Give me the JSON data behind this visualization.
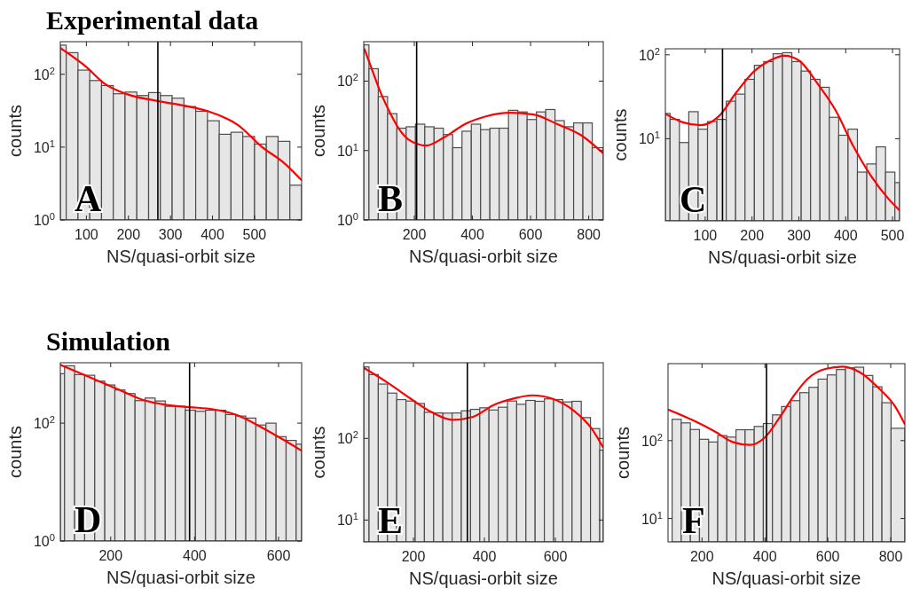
{
  "chart_data": [
    {
      "type": "histogram",
      "title": "Experimental data",
      "xlabel": "NS/quasi-orbit size",
      "ylabel": "counts",
      "annotations": [
        "A"
      ],
      "log": "y",
      "xlim": [
        38,
        612
      ],
      "ylim": [
        1,
        280
      ],
      "xticks": [
        100,
        200,
        300,
        400,
        500
      ],
      "yticks": [
        {
          "value": 1,
          "label": "10$^{0}$"
        },
        {
          "value": 10,
          "label": "10$^{1}$"
        },
        {
          "value": 100,
          "label": "10$^{2}$"
        }
      ],
      "ref_lines": [
        {
          "axis": "x",
          "value": 270,
          "color": "#000000"
        }
      ],
      "series": [
        {
          "type": "histogram",
          "color": "#e6e6e6",
          "bins": [
            38,
            52,
            80,
            108,
            136,
            164,
            192,
            220,
            248,
            276,
            304,
            332,
            360,
            388,
            416,
            444,
            472,
            500,
            528,
            556,
            584,
            612
          ],
          "values": [
            251,
            198,
            114,
            82,
            70,
            54,
            57,
            51,
            56,
            51,
            47,
            36,
            31,
            23,
            15,
            16,
            14,
            11,
            14,
            12,
            3
          ]
        },
        {
          "type": "line",
          "color": "#ff0000",
          "x": [
            38,
            99,
            141,
            198,
            269,
            333,
            390,
            461,
            518,
            568,
            612
          ],
          "values": [
            229,
            127,
            76,
            53,
            43,
            37,
            31,
            20,
            10,
            6.2,
            3.5
          ]
        }
      ]
    },
    {
      "type": "histogram",
      "xlabel": "NS/quasi-orbit size",
      "ylabel": "counts",
      "annotations": [
        "B"
      ],
      "log": "y",
      "xlim": [
        26,
        850
      ],
      "ylim": [
        1,
        370
      ],
      "xticks": [
        200,
        400,
        600,
        800
      ],
      "yticks": [
        {
          "value": 1,
          "label": "10$^{0}$"
        },
        {
          "value": 10,
          "label": "10$^{1}$"
        },
        {
          "value": 100,
          "label": "10$^{2}$"
        }
      ],
      "ref_lines": [
        {
          "axis": "x",
          "value": 208,
          "color": "#000000"
        }
      ],
      "series": [
        {
          "type": "histogram",
          "color": "#e6e6e6",
          "bins": [
            26,
            44,
            76,
            108,
            140,
            172,
            204,
            236,
            268,
            300,
            332,
            364,
            396,
            428,
            460,
            492,
            524,
            556,
            588,
            620,
            652,
            684,
            716,
            748,
            780,
            812,
            850
          ],
          "values": [
            333,
            151,
            60,
            34,
            21,
            22,
            24,
            22,
            21,
            17,
            11,
            19,
            24,
            20,
            21,
            21,
            38,
            36,
            28,
            36,
            39,
            27,
            22,
            25,
            25,
            11
          ]
        },
        {
          "type": "line",
          "color": "#ff0000",
          "x": [
            28,
            56,
            87,
            118,
            149,
            179,
            241,
            303,
            374,
            446,
            528,
            610,
            692,
            774,
            850
          ],
          "values": [
            294,
            141,
            64,
            34,
            20,
            14.5,
            11.8,
            15.5,
            24,
            31,
            35,
            33,
            24,
            16.6,
            9.1
          ]
        }
      ]
    },
    {
      "type": "histogram",
      "xlabel": "NS/quasi-orbit size",
      "ylabel": "counts",
      "annotations": [
        "C"
      ],
      "log": "y",
      "xlim": [
        15,
        515
      ],
      "ylim": [
        1.05,
        118
      ],
      "xticks": [
        100,
        200,
        300,
        400,
        500
      ],
      "yticks": [
        {
          "value": 10,
          "label": "10$^{1}$"
        },
        {
          "value": 100,
          "label": "10$^{2}$"
        }
      ],
      "ref_lines": [
        {
          "axis": "x",
          "value": 137,
          "color": "#000000"
        }
      ],
      "series": [
        {
          "type": "histogram",
          "color": "#e6e6e6",
          "bins": [
            15,
            25,
            45,
            65,
            85,
            105,
            125,
            145,
            165,
            185,
            205,
            225,
            245,
            265,
            285,
            305,
            325,
            345,
            365,
            385,
            405,
            425,
            445,
            465,
            485,
            505,
            515
          ],
          "values": [
            20,
            17,
            9,
            21,
            13,
            16,
            17,
            28,
            34,
            51,
            75,
            83,
            103,
            106,
            83,
            64,
            51,
            41,
            18,
            11,
            13,
            4,
            5,
            8,
            4,
            3
          ]
        },
        {
          "type": "line",
          "color": "#ff0000",
          "x": [
            15,
            52,
            90,
            129,
            167,
            205,
            237,
            269,
            301,
            339,
            378,
            416,
            454,
            492,
            515
          ],
          "values": [
            19.8,
            15.7,
            14.5,
            18.5,
            36,
            64,
            85,
            97.5,
            85,
            46,
            22,
            8.2,
            3.6,
            1.9,
            1.4
          ]
        }
      ]
    },
    {
      "type": "histogram",
      "title": "Simulation",
      "xlabel": "NS/quasi-orbit size",
      "ylabel": "counts",
      "annotations": [
        "D"
      ],
      "log": "y",
      "xlim": [
        80,
        655
      ],
      "ylim": [
        1,
        1060
      ],
      "xticks": [
        200,
        400,
        600
      ],
      "yticks": [
        {
          "value": 1,
          "label": "10$^{0}$"
        },
        {
          "value": 100,
          "label": "10$^{2}$"
        }
      ],
      "ref_lines": [
        {
          "axis": "x",
          "value": 388,
          "color": "#000000"
        }
      ],
      "series": [
        {
          "type": "histogram",
          "color": "#e6e6e6",
          "bins": [
            80,
            90,
            114,
            138,
            162,
            186,
            210,
            234,
            258,
            282,
            306,
            330,
            354,
            378,
            402,
            426,
            450,
            474,
            498,
            522,
            546,
            570,
            594,
            618,
            642,
            655
          ],
          "values": [
            690,
            940,
            667,
            650,
            517,
            445,
            366,
            318,
            241,
            267,
            238,
            193,
            193,
            166,
            159,
            166,
            166,
            140,
            132,
            122,
            93,
            100,
            59,
            51,
            44
          ]
        },
        {
          "type": "line",
          "color": "#ff0000",
          "x": [
            80,
            147,
            218,
            274,
            331,
            388,
            444,
            501,
            558,
            614,
            655
          ],
          "values": [
            977,
            615,
            374,
            252,
            205,
            187,
            172,
            137,
            86,
            51,
            34
          ]
        }
      ]
    },
    {
      "type": "histogram",
      "xlabel": "NS/quasi-orbit size",
      "ylabel": "counts",
      "annotations": [
        "E"
      ],
      "log": "y",
      "xlim": [
        60,
        735
      ],
      "ylim": [
        5.4,
        845
      ],
      "xticks": [
        200,
        400,
        600
      ],
      "yticks": [
        {
          "value": 10,
          "label": "10$^{1}$"
        },
        {
          "value": 100,
          "label": "10$^{2}$"
        }
      ],
      "ref_lines": [
        {
          "axis": "x",
          "value": 352,
          "color": "#000000"
        }
      ],
      "series": [
        {
          "type": "histogram",
          "color": "#e6e6e6",
          "bins": [
            60,
            75,
            101,
            127,
            153,
            179,
            205,
            231,
            257,
            283,
            309,
            335,
            361,
            387,
            413,
            439,
            465,
            491,
            517,
            543,
            569,
            595,
            621,
            647,
            673,
            699,
            725,
            735
          ],
          "values": [
            751,
            605,
            463,
            359,
            299,
            287,
            268,
            209,
            205,
            204,
            205,
            218,
            227,
            237,
            223,
            241,
            287,
            262,
            292,
            285,
            305,
            299,
            280,
            285,
            180,
            132,
            72
          ]
        },
        {
          "type": "line",
          "color": "#ff0000",
          "x": [
            60,
            127,
            193,
            252,
            310,
            368,
            427,
            485,
            535,
            593,
            652,
            702,
            735
          ],
          "values": [
            733,
            483,
            305,
            209,
            169,
            184,
            258,
            310,
            337,
            305,
            218,
            132,
            77
          ]
        }
      ]
    },
    {
      "type": "histogram",
      "xlabel": "NS/quasi-orbit size",
      "ylabel": "counts",
      "annotations": [
        "F"
      ],
      "log": "y",
      "xlim": [
        92,
        845
      ],
      "ylim": [
        5,
        975
      ],
      "xticks": [
        200,
        400,
        600,
        800
      ],
      "yticks": [
        {
          "value": 10,
          "label": "10$^{1}$"
        },
        {
          "value": 100,
          "label": "10$^{2}$"
        }
      ],
      "ref_lines": [
        {
          "axis": "x",
          "value": 405,
          "color": "#000000"
        }
      ],
      "series": [
        {
          "type": "histogram",
          "color": "#e6e6e6",
          "bins": [
            105,
            134,
            163,
            192,
            221,
            250,
            279,
            308,
            337,
            366,
            395,
            424,
            453,
            482,
            511,
            540,
            569,
            598,
            627,
            656,
            685,
            714,
            743,
            772,
            801,
            845
          ],
          "values": [
            188,
            169,
            139,
            104,
            96,
            116,
            111,
            138,
            138,
            152,
            166,
            214,
            274,
            326,
            413,
            484,
            617,
            698,
            818,
            862,
            877,
            687,
            492,
            307,
            144
          ]
        },
        {
          "type": "line",
          "color": "#ff0000",
          "x": [
            92,
            168,
            242,
            297,
            352,
            399,
            445,
            491,
            537,
            592,
            648,
            703,
            759,
            814,
            845
          ],
          "values": [
            251,
            185,
            130,
            96,
            88,
            109,
            193,
            372,
            628,
            832,
            893,
            750,
            483,
            274,
            162
          ]
        }
      ]
    }
  ]
}
